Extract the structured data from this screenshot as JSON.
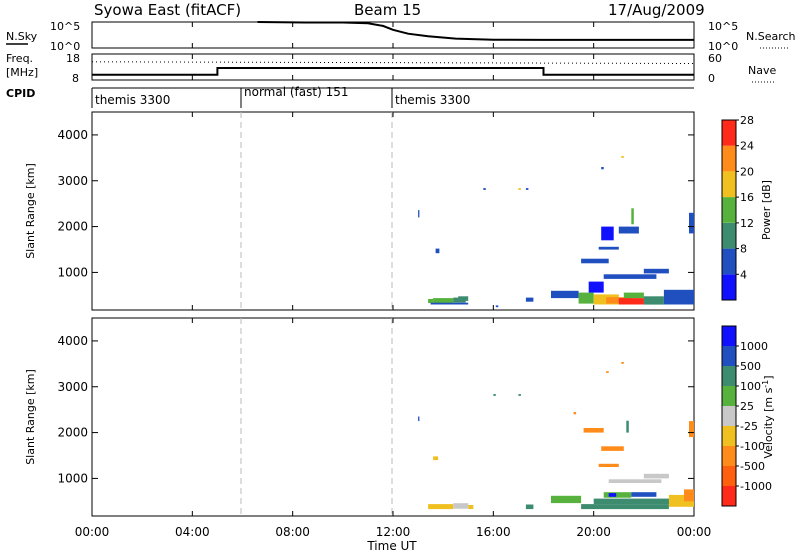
{
  "header": {
    "station": "Syowa East (fitACF)",
    "beam": "Beam 15",
    "date": "17/Aug/2009"
  },
  "noise_panel": {
    "left_label": "N.Sky",
    "right_label": "N.Search",
    "left_ticks": [
      "10^5",
      "10^0"
    ],
    "right_ticks": [
      "10^5",
      "10^0"
    ],
    "sky": [
      [
        6.6,
        1.0
      ],
      [
        8.5,
        0.98
      ],
      [
        10.0,
        0.98
      ],
      [
        11.0,
        0.95
      ],
      [
        11.6,
        0.85
      ],
      [
        12.0,
        0.7
      ],
      [
        12.6,
        0.55
      ],
      [
        13.4,
        0.45
      ],
      [
        14.5,
        0.36
      ],
      [
        16.0,
        0.32
      ],
      [
        18.0,
        0.31
      ],
      [
        20.0,
        0.31
      ],
      [
        24.0,
        0.31
      ]
    ]
  },
  "freq_panel": {
    "left_label_top": "Freq.",
    "left_label_bottom": "[MHz]",
    "left_ticks": [
      "18",
      "8"
    ],
    "right_label": "Nave",
    "right_ticks": [
      "60",
      "0"
    ],
    "freq_mhz": [
      [
        0,
        10.0
      ],
      [
        5.0,
        10.0
      ],
      [
        5.0,
        12.6
      ],
      [
        18.0,
        12.6
      ],
      [
        18.0,
        10.0
      ],
      [
        24.0,
        10.0
      ]
    ],
    "nave": [
      [
        0,
        42
      ],
      [
        24,
        38
      ]
    ]
  },
  "cpid_panel": {
    "label": "CPID",
    "modes": [
      {
        "start": 0.0,
        "end": 6.0,
        "text": "themis 3300"
      },
      {
        "start": 6.0,
        "end": 12.0,
        "text": "normal (fast) 151"
      },
      {
        "start": 12.0,
        "end": 24.0,
        "text": "themis 3300"
      }
    ]
  },
  "chart_data": [
    {
      "type": "heatmap",
      "quantity": "power",
      "ylabel": "Slant Range [km]",
      "ylim": [
        180,
        4500
      ],
      "yticks": [
        "1000",
        "2000",
        "3000",
        "4000"
      ],
      "xlim": [
        0,
        24
      ],
      "colorbar": {
        "label": "Power [dB]",
        "ticks": [
          "4",
          "8",
          "12",
          "16",
          "20",
          "24",
          "28"
        ],
        "colors": [
          "#1010ff",
          "#2050c0",
          "#3e8c70",
          "#56b23c",
          "#f0c020",
          "#ff8c1a",
          "#ff2a1a"
        ]
      },
      "cells": [
        [
          13.4,
          330,
          13.6,
          420,
          "#56b23c"
        ],
        [
          13.6,
          330,
          14.4,
          440,
          "#56b23c"
        ],
        [
          14.4,
          340,
          14.9,
          450,
          "#3e8c70"
        ],
        [
          13.5,
          300,
          15.0,
          340,
          "#2050c0"
        ],
        [
          14.6,
          380,
          15.0,
          480,
          "#3e8c70"
        ],
        [
          18.3,
          440,
          19.4,
          600,
          "#2050c0"
        ],
        [
          19.4,
          320,
          20.0,
          560,
          "#56b23c"
        ],
        [
          20.0,
          300,
          21.0,
          520,
          "#f0c020"
        ],
        [
          20.5,
          320,
          21.5,
          460,
          "#ff8c1a"
        ],
        [
          21.0,
          300,
          22.0,
          440,
          "#ff2a1a"
        ],
        [
          21.2,
          440,
          22.0,
          560,
          "#56b23c"
        ],
        [
          22.0,
          300,
          22.8,
          480,
          "#3e8c70"
        ],
        [
          22.8,
          300,
          24.0,
          620,
          "#2050c0"
        ],
        [
          19.8,
          560,
          20.4,
          800,
          "#1010ff"
        ],
        [
          20.4,
          860,
          22.5,
          960,
          "#2050c0"
        ],
        [
          22.0,
          980,
          23.0,
          1080,
          "#2050c0"
        ],
        [
          19.5,
          1200,
          20.6,
          1300,
          "#2050c0"
        ],
        [
          20.2,
          1500,
          21.0,
          1560,
          "#2050c0"
        ],
        [
          20.3,
          1700,
          20.8,
          2000,
          "#1010ff"
        ],
        [
          21.0,
          1850,
          21.8,
          2000,
          "#2050c0"
        ],
        [
          21.5,
          2050,
          21.6,
          2400,
          "#56b23c"
        ],
        [
          23.8,
          1850,
          24.0,
          2300,
          "#2050c0"
        ],
        [
          13.7,
          1420,
          13.85,
          1520,
          "#2050c0"
        ],
        [
          13.0,
          2200,
          13.05,
          2360,
          "#2050c0"
        ],
        [
          20.3,
          3250,
          20.4,
          3300,
          "#2050c0"
        ],
        [
          21.1,
          3500,
          21.2,
          3540,
          "#f0c020"
        ],
        [
          15.6,
          2800,
          15.7,
          2840,
          "#2050c0"
        ],
        [
          17.0,
          2800,
          17.1,
          2840,
          "#f0c020"
        ],
        [
          17.3,
          2800,
          17.4,
          2840,
          "#2050c0"
        ],
        [
          16.1,
          240,
          16.2,
          280,
          "#2050c0"
        ],
        [
          17.3,
          360,
          17.6,
          450,
          "#2050c0"
        ]
      ]
    },
    {
      "type": "heatmap",
      "quantity": "velocity",
      "ylabel": "Slant Range [km]",
      "ylim": [
        180,
        4500
      ],
      "yticks": [
        "1000",
        "2000",
        "3000",
        "4000"
      ],
      "xlim": [
        0,
        24
      ],
      "xticks": [
        "00:00",
        "04:00",
        "08:00",
        "12:00",
        "16:00",
        "20:00",
        "00:00"
      ],
      "xlabel": "Time UT",
      "colorbar": {
        "label": "Velocity [m s^-1]",
        "ticks": [
          "1000",
          "500",
          "100",
          "25",
          "-25",
          "-100",
          "-500",
          "-1000"
        ],
        "colors": [
          "#1010ff",
          "#2050c0",
          "#3e8c70",
          "#56b23c",
          "#c8c8c8",
          "#f0c020",
          "#ff8c1a",
          "#ff6010",
          "#ff2a1a"
        ]
      },
      "cells": [
        [
          13.4,
          330,
          14.4,
          440,
          "#f0c020"
        ],
        [
          14.4,
          340,
          15.0,
          460,
          "#c8c8c8"
        ],
        [
          15.0,
          330,
          15.2,
          420,
          "#f0c020"
        ],
        [
          17.3,
          330,
          17.6,
          430,
          "#3e8c70"
        ],
        [
          18.3,
          460,
          19.5,
          620,
          "#56b23c"
        ],
        [
          19.5,
          330,
          23.0,
          440,
          "#3e8c70"
        ],
        [
          20.0,
          440,
          23.0,
          560,
          "#3e8c70"
        ],
        [
          23.0,
          380,
          24.0,
          640,
          "#f0c020"
        ],
        [
          23.6,
          500,
          24.0,
          760,
          "#ff8c1a"
        ],
        [
          20.4,
          580,
          21.5,
          700,
          "#56b23c"
        ],
        [
          20.6,
          600,
          20.9,
          680,
          "#1010ff"
        ],
        [
          21.5,
          600,
          22.5,
          700,
          "#2050c0"
        ],
        [
          20.6,
          900,
          22.7,
          980,
          "#c8c8c8"
        ],
        [
          22.0,
          1000,
          23.0,
          1100,
          "#c8c8c8"
        ],
        [
          20.2,
          1250,
          21.0,
          1320,
          "#ff8c1a"
        ],
        [
          20.3,
          1600,
          21.2,
          1700,
          "#ff8c1a"
        ],
        [
          19.6,
          2000,
          20.4,
          2100,
          "#ff8c1a"
        ],
        [
          19.2,
          2400,
          19.3,
          2450,
          "#ff8c1a"
        ],
        [
          21.3,
          2000,
          21.4,
          2260,
          "#3e8c70"
        ],
        [
          23.8,
          1900,
          24.0,
          2250,
          "#ff8c1a"
        ],
        [
          13.0,
          2250,
          13.05,
          2350,
          "#2050c0"
        ],
        [
          13.6,
          1400,
          13.8,
          1480,
          "#f0c020"
        ],
        [
          16.0,
          2800,
          16.1,
          2840,
          "#3e8c70"
        ],
        [
          17.0,
          2800,
          17.1,
          2840,
          "#3e8c70"
        ],
        [
          20.5,
          3300,
          20.6,
          3340,
          "#ff8c1a"
        ],
        [
          21.1,
          3500,
          21.2,
          3540,
          "#ff8c1a"
        ]
      ]
    }
  ]
}
